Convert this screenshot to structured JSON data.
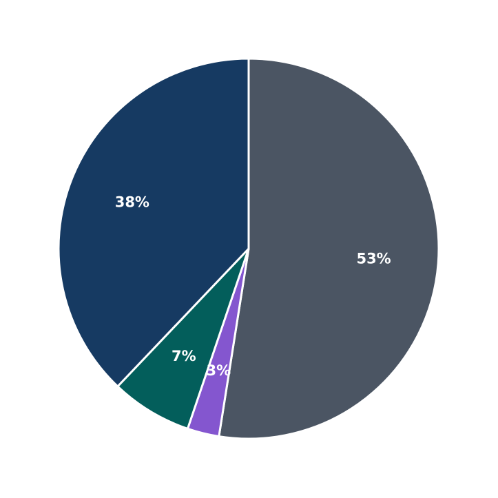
{
  "chart_data": {
    "type": "pie",
    "title": "",
    "start_angle_deg_clockwise_from_top": 0,
    "direction": "clockwise",
    "slices": [
      {
        "label": "53%",
        "value": 52.5,
        "color": "#4b5563"
      },
      {
        "label": "3%",
        "value": 2.7,
        "color": "#8456cf"
      },
      {
        "label": "7%",
        "value": 6.9,
        "color": "#035e5b"
      },
      {
        "label": "38%",
        "value": 37.9,
        "color": "#163a62"
      }
    ],
    "labels": [
      "53%",
      "3%",
      "7%",
      "38%"
    ],
    "values": [
      52.5,
      2.7,
      6.9,
      37.9
    ],
    "legend": null
  }
}
